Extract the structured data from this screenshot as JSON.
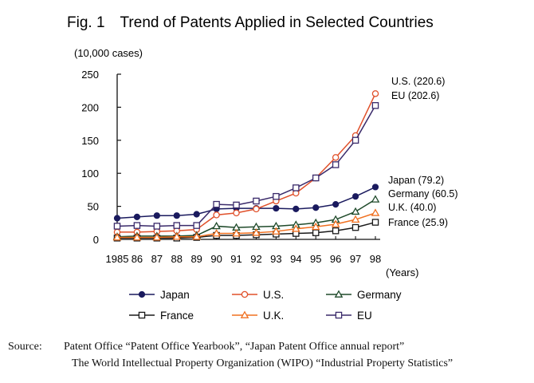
{
  "colors": {
    "Japan": "#1a1a5e",
    "U.S.": "#e0502a",
    "Germany": "#1f4a2a",
    "France": "#1a1a1a",
    "U.K.": "#f07020",
    "EU": "#3a2a6a"
  },
  "chart_data": {
    "type": "line",
    "title": "Fig. 1 Trend of Patents Applied in Selected Countries",
    "ylabel": "(10,000 cases)",
    "xlabel": "(Years)",
    "x": [
      "1985",
      "86",
      "87",
      "88",
      "89",
      "90",
      "91",
      "92",
      "93",
      "94",
      "95",
      "96",
      "97",
      "98"
    ],
    "ylim": [
      0,
      250
    ],
    "yticks": [
      0,
      50,
      100,
      150,
      200,
      250
    ],
    "grid": false,
    "legend_position": "bottom",
    "series": [
      {
        "name": "Japan",
        "marker": "filled-circle",
        "values": [
          32,
          34,
          36,
          36,
          38,
          46,
          47,
          47,
          47,
          46,
          48,
          53,
          65,
          79.2
        ],
        "end_label": "Japan (79.2)"
      },
      {
        "name": "U.S.",
        "marker": "open-circle",
        "values": [
          11,
          11,
          12,
          13,
          15,
          37,
          40,
          46,
          58,
          70,
          93,
          124,
          157,
          220.6
        ],
        "end_label": "U.S. (220.6)"
      },
      {
        "name": "Germany",
        "marker": "open-triangle",
        "values": [
          4,
          5,
          5,
          5,
          6,
          20,
          18,
          19,
          20,
          22,
          25,
          30,
          42,
          60.5
        ],
        "end_label": "Germany (60.5)"
      },
      {
        "name": "France",
        "marker": "open-square",
        "values": [
          2,
          2,
          2,
          2,
          3,
          6,
          6,
          7,
          8,
          9,
          10,
          13,
          18,
          25.9
        ],
        "end_label": "France (25.9)"
      },
      {
        "name": "U.K.",
        "marker": "open-triangle",
        "values": [
          3,
          3,
          3,
          4,
          4,
          9,
          9,
          10,
          12,
          16,
          19,
          23,
          30,
          40.0
        ],
        "end_label": "U.K. (40.0)"
      },
      {
        "name": "EU",
        "marker": "open-square",
        "values": [
          20,
          21,
          20,
          21,
          21,
          53,
          52,
          58,
          65,
          78,
          93,
          113,
          150,
          202.6
        ],
        "end_label": "EU  (202.6)"
      }
    ],
    "legend": [
      [
        "Japan",
        "U.S.",
        "Germany"
      ],
      [
        "France",
        "U.K.",
        "EU"
      ]
    ]
  },
  "source": {
    "label": "Source:",
    "line1": "Patent Office “Patent Office Yearbook”, “Japan Patent Office annual report”",
    "line2": "The World Intellectual Property Organization (WIPO) “Industrial Property Statistics”"
  }
}
